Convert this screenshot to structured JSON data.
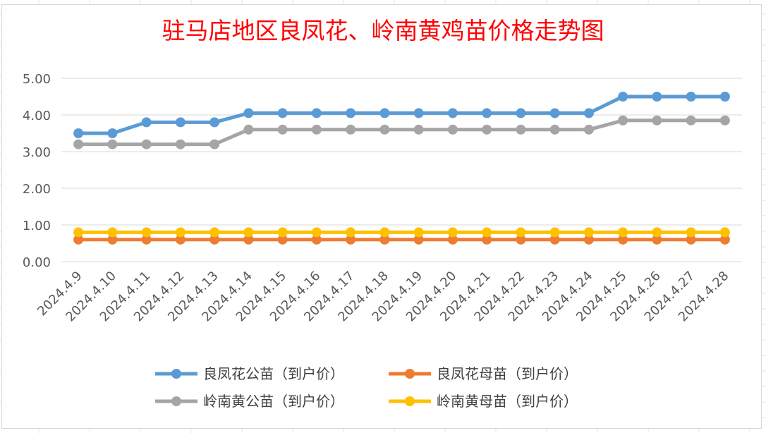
{
  "chart_data": {
    "type": "line",
    "title": "驻马店地区良凤花、岭南黄鸡苗价格走势图",
    "xlabel": "",
    "ylabel": "",
    "ylim": [
      0,
      5
    ],
    "yticks": [
      "0.00",
      "1.00",
      "2.00",
      "3.00",
      "4.00",
      "5.00"
    ],
    "grid": true,
    "legend_position": "bottom",
    "categories": [
      "2024.4.9",
      "2024.4.10",
      "2024.4.11",
      "2024.4.12",
      "2024.4.13",
      "2024.4.14",
      "2024.4.15",
      "2024.4.16",
      "2024.4.17",
      "2024.4.18",
      "2024.4.19",
      "2024.4.20",
      "2024.4.21",
      "2024.4.22",
      "2024.4.23",
      "2024.4.24",
      "2024.4.25",
      "2024.4.26",
      "2024.4.27",
      "2024.4.28"
    ],
    "series": [
      {
        "name": "良凤花公苗（到户价）",
        "color": "#5b9bd5",
        "values": [
          3.5,
          3.5,
          3.8,
          3.8,
          3.8,
          4.05,
          4.05,
          4.05,
          4.05,
          4.05,
          4.05,
          4.05,
          4.05,
          4.05,
          4.05,
          4.05,
          4.5,
          4.5,
          4.5,
          4.5
        ]
      },
      {
        "name": "良凤花母苗（到户价）",
        "color": "#ed7d31",
        "values": [
          0.6,
          0.6,
          0.6,
          0.6,
          0.6,
          0.6,
          0.6,
          0.6,
          0.6,
          0.6,
          0.6,
          0.6,
          0.6,
          0.6,
          0.6,
          0.6,
          0.6,
          0.6,
          0.6,
          0.6
        ]
      },
      {
        "name": "岭南黄公苗（到户价）",
        "color": "#a5a5a5",
        "values": [
          3.2,
          3.2,
          3.2,
          3.2,
          3.2,
          3.6,
          3.6,
          3.6,
          3.6,
          3.6,
          3.6,
          3.6,
          3.6,
          3.6,
          3.6,
          3.6,
          3.85,
          3.85,
          3.85,
          3.85
        ]
      },
      {
        "name": "岭南黄母苗（到户价）",
        "color": "#ffc000",
        "values": [
          0.8,
          0.8,
          0.8,
          0.8,
          0.8,
          0.8,
          0.8,
          0.8,
          0.8,
          0.8,
          0.8,
          0.8,
          0.8,
          0.8,
          0.8,
          0.8,
          0.8,
          0.8,
          0.8,
          0.8
        ]
      }
    ]
  }
}
